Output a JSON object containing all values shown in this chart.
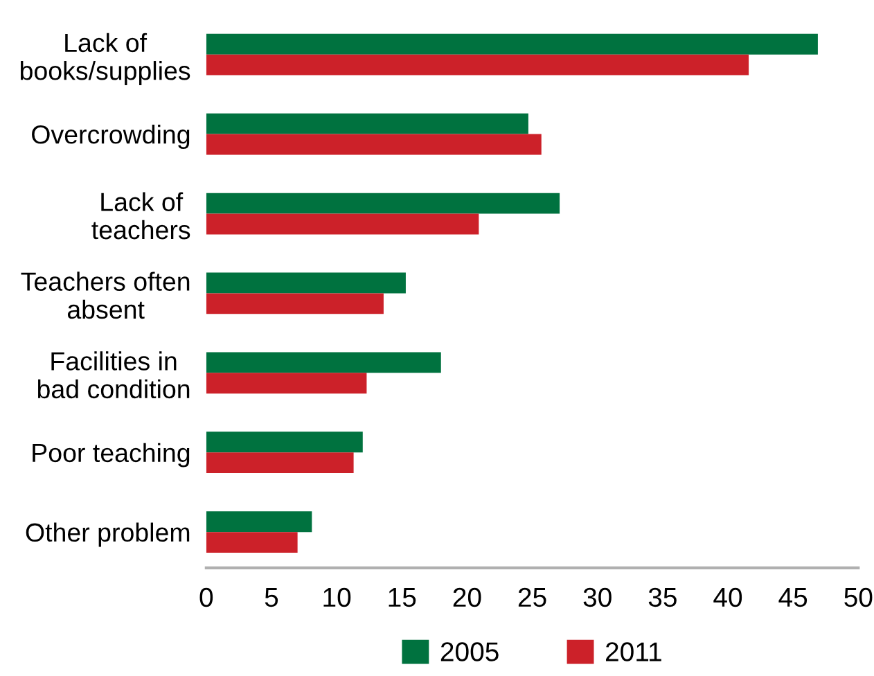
{
  "chart_data": {
    "type": "bar",
    "orientation": "horizontal",
    "categories": [
      "Lack of\nbooks/supplies",
      "Overcrowding",
      "Lack of\nteachers",
      "Teachers often\nabsent",
      "Facilities in\nbad condition",
      "Poor teaching",
      "Other problem"
    ],
    "series": [
      {
        "name": "2005",
        "color": "#00723f",
        "values": [
          46.9,
          24.7,
          27.1,
          15.3,
          18.0,
          12.0,
          8.1
        ]
      },
      {
        "name": "2011",
        "color": "#cc2129",
        "values": [
          41.6,
          25.7,
          20.9,
          13.6,
          12.3,
          11.3,
          7.0
        ]
      }
    ],
    "xlim": [
      0,
      50
    ],
    "xticks": [
      0,
      5,
      10,
      15,
      20,
      25,
      30,
      35,
      40,
      45,
      50
    ],
    "grid": false,
    "legend": "bottom"
  }
}
